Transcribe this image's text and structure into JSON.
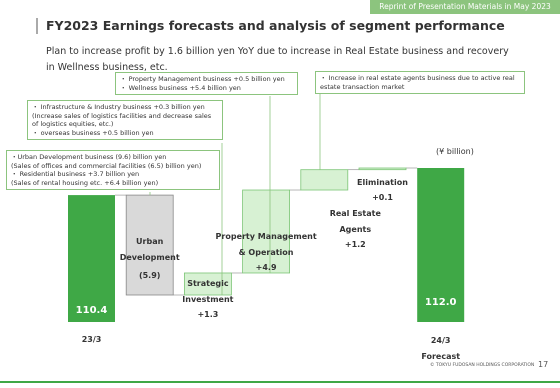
{
  "header": {
    "banner": "Reprint of Presentation Materials in May 2023",
    "title": "FY2023 Earnings forecasts and analysis of segment performance",
    "subtitle": "Plan to increase profit by 1.6 billion yen YoY due to increase in Real Estate business and recovery in Wellness business, etc."
  },
  "chart_data": {
    "type": "waterfall",
    "unit_label": "(¥ billion)",
    "categories": [
      "23/3",
      "Urban\nDevelopment",
      "Strategic\nInvestment",
      "Property Management\n& Operation",
      "Real Estate\nAgents",
      "Elimination",
      "24/3\nForecast"
    ],
    "values": [
      110.4,
      -5.9,
      1.3,
      4.9,
      1.2,
      0.1,
      112.0
    ],
    "value_labels": [
      "110.4",
      "(5.9)",
      "+1.3",
      "+4.9",
      "+1.2",
      "+0.1",
      "112.0"
    ],
    "is_total": [
      true,
      false,
      false,
      false,
      false,
      false,
      true
    ],
    "colors": {
      "total": "#3fa846",
      "decrease": "#d9d9d9",
      "increase": "#d7f1d3"
    },
    "annotations": [
      {
        "lines": [
          "・ Property Management business +0.5 billion yen",
          "・ Wellness business +5.4 billion yen"
        ]
      },
      {
        "lines": [
          "・ Infrastructure & Industry business +0.3 billion yen",
          "(Increase sales of logistics facilities and decrease sales of logistics equities, etc.)",
          "・ overseas business +0.5 billion yen"
        ]
      },
      {
        "lines": [
          "・Urban Development business (9.6) billion yen",
          "(Sales of offices and commercial facilities (6.5) billion yen)",
          "・ Residential business +3.7 billion yen",
          "(Sales of  rental housing etc. +6.4 billion yen)"
        ]
      },
      {
        "lines": [
          "・ Increase in real estate agents business due to active real estate transaction market"
        ]
      }
    ]
  },
  "footer": {
    "copyright": "© TOKYU FUDOSAN HOLDINGS CORPORATION",
    "page": 17
  }
}
